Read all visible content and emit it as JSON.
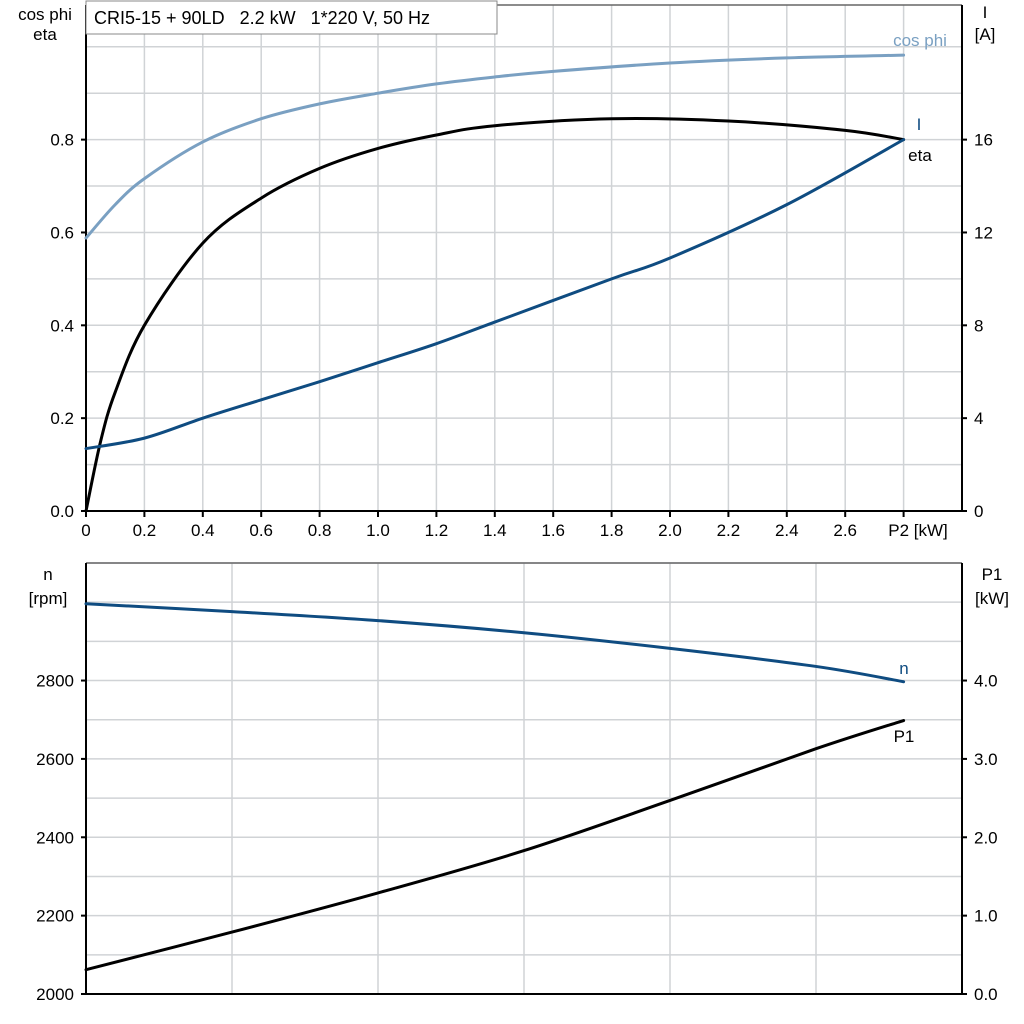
{
  "chart_data": [
    {
      "type": "line",
      "title": "CRI5-15 + 90LD   2.2 kW   1*220 V, 50 Hz",
      "xlabel": "P2 [kW]",
      "ylabel_left": [
        "cos phi",
        "eta"
      ],
      "ylabel_right": [
        "I",
        "[A]"
      ],
      "xlim": [
        0,
        3.0
      ],
      "ylim_left": [
        0,
        1.09
      ],
      "ylim_right": [
        0,
        21.8
      ],
      "x_ticks": [
        "0",
        "0.2",
        "0.4",
        "0.6",
        "0.8",
        "1.0",
        "1.2",
        "1.4",
        "1.6",
        "1.8",
        "2.0",
        "2.2",
        "2.4",
        "2.6"
      ],
      "y_ticks_left": [
        "0.0",
        "0.2",
        "0.4",
        "0.6",
        "0.8"
      ],
      "y_ticks_right": [
        "0",
        "4",
        "8",
        "12",
        "16"
      ],
      "grid": true,
      "series": [
        {
          "name": "cos phi",
          "axis": "left",
          "color": "#7aa0c2",
          "x": [
            0,
            0.1,
            0.2,
            0.4,
            0.6,
            0.8,
            1.0,
            1.2,
            1.4,
            1.6,
            2.0,
            2.4,
            2.8
          ],
          "y": [
            0.588,
            0.66,
            0.716,
            0.795,
            0.845,
            0.877,
            0.9,
            0.92,
            0.935,
            0.947,
            0.965,
            0.976,
            0.982
          ]
        },
        {
          "name": "eta",
          "axis": "left",
          "color": "#000000",
          "x": [
            0,
            0.05,
            0.1,
            0.2,
            0.4,
            0.6,
            0.8,
            1.0,
            1.2,
            1.4,
            1.8,
            2.2,
            2.6,
            2.8
          ],
          "y": [
            0,
            0.15,
            0.256,
            0.4,
            0.577,
            0.674,
            0.738,
            0.781,
            0.81,
            0.83,
            0.845,
            0.84,
            0.82,
            0.8
          ]
        },
        {
          "name": "I",
          "axis": "right",
          "color": "#0f4c81",
          "x": [
            0,
            0.2,
            0.4,
            0.6,
            0.8,
            1.0,
            1.2,
            1.4,
            1.8,
            2.0,
            2.4,
            2.8
          ],
          "y": [
            2.69,
            3.14,
            4.0,
            4.79,
            5.57,
            6.39,
            7.21,
            8.14,
            10.0,
            10.9,
            13.2,
            16.0
          ]
        }
      ]
    },
    {
      "type": "line",
      "xlim": [
        0,
        3.0
      ],
      "ylabel_left": [
        "n",
        "[rpm]"
      ],
      "ylabel_right": [
        "P1",
        "[kW]"
      ],
      "ylim_left": [
        2000,
        3100
      ],
      "ylim_right": [
        0,
        5.5
      ],
      "y_ticks_left": [
        "2000",
        "2200",
        "2400",
        "2600",
        "2800"
      ],
      "y_ticks_right": [
        "0.0",
        "1.0",
        "2.0",
        "3.0",
        "4.0"
      ],
      "grid": true,
      "series": [
        {
          "name": "n",
          "axis": "left",
          "color": "#0f4c81",
          "x": [
            0,
            0.5,
            1.0,
            1.5,
            2.0,
            2.5,
            2.8
          ],
          "y": [
            2996,
            2976,
            2953,
            2922,
            2882,
            2836,
            2797
          ]
        },
        {
          "name": "P1",
          "axis": "right",
          "color": "#000000",
          "x": [
            0,
            0.5,
            1.0,
            1.5,
            2.0,
            2.5,
            2.8
          ],
          "y": [
            0.31,
            0.79,
            1.29,
            1.83,
            2.47,
            3.13,
            3.49
          ]
        }
      ]
    }
  ]
}
